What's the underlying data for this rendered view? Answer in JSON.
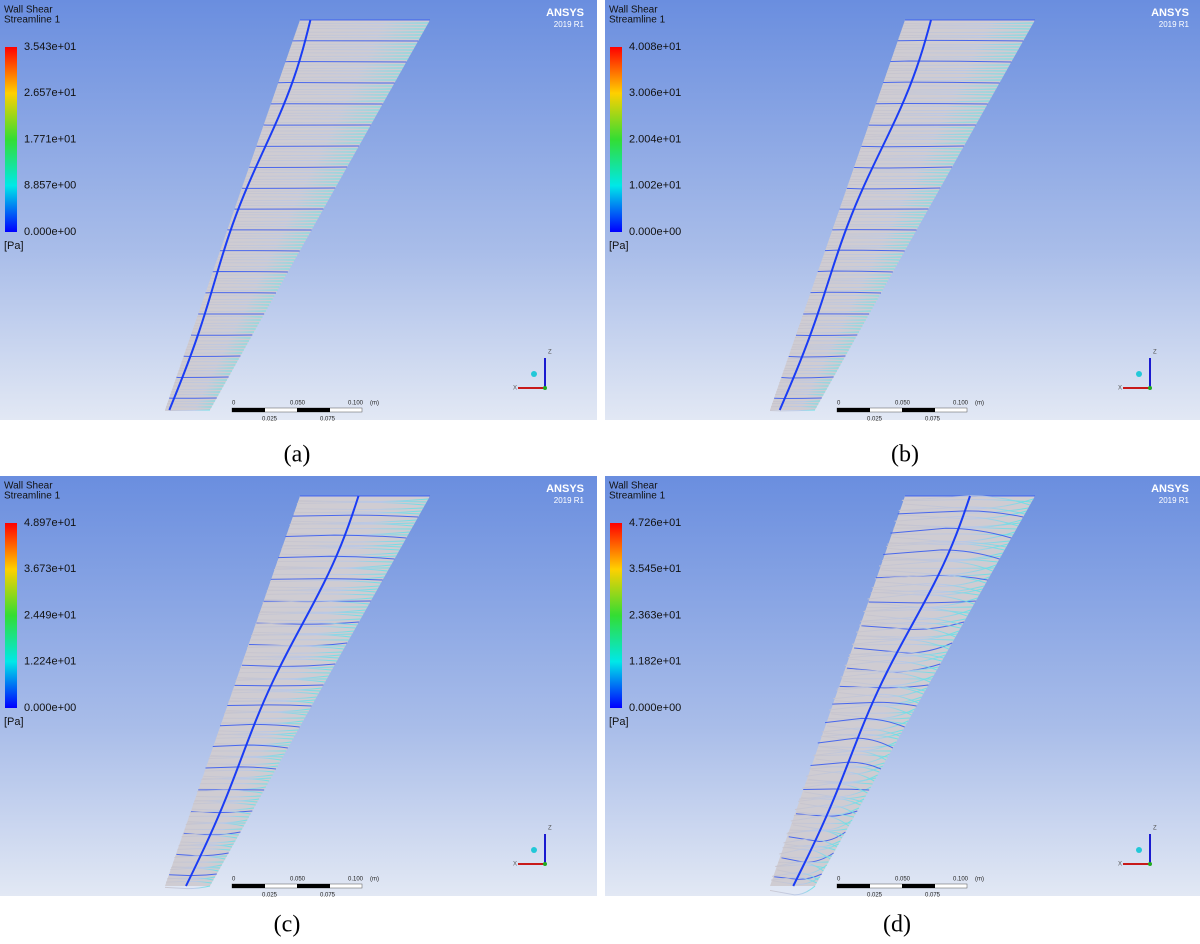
{
  "panels": [
    {
      "title": "Wall Shear",
      "subtitle": "Streamline 1",
      "legend": [
        "3.543e+01",
        "2.657e+01",
        "1.771e+01",
        "8.857e+00",
        "0.000e+00"
      ],
      "unit": "[Pa]",
      "brand": "ANSYS",
      "version": "2019 R1",
      "scale_top": [
        "0",
        "0.050",
        "0.100",
        "(m)"
      ],
      "scale_bottom": [
        "0.025",
        "0.075"
      ],
      "axes": [
        "Z",
        "X"
      ],
      "caption": "(a)"
    },
    {
      "title": "Wall Shear",
      "subtitle": "Streamline 1",
      "legend": [
        "4.008e+01",
        "3.006e+01",
        "2.004e+01",
        "1.002e+01",
        "0.000e+00"
      ],
      "unit": "[Pa]",
      "brand": "ANSYS",
      "version": "2019 R1",
      "scale_top": [
        "0",
        "0.050",
        "0.100",
        "(m)"
      ],
      "scale_bottom": [
        "0.025",
        "0.075"
      ],
      "axes": [
        "Z",
        "X"
      ],
      "caption": "(b)"
    },
    {
      "title": "Wall Shear",
      "subtitle": "Streamline 1",
      "legend": [
        "4.897e+01",
        "3.673e+01",
        "2.449e+01",
        "1.224e+01",
        "0.000e+00"
      ],
      "unit": "[Pa]",
      "brand": "ANSYS",
      "version": "2019 R1",
      "scale_top": [
        "0",
        "0.050",
        "0.100",
        "(m)"
      ],
      "scale_bottom": [
        "0.025",
        "0.075"
      ],
      "axes": [
        "Z",
        "X"
      ],
      "caption": "(c)"
    },
    {
      "title": "Wall Shear",
      "subtitle": "Streamline 1",
      "legend": [
        "4.726e+01",
        "3.545e+01",
        "2.363e+01",
        "1.182e+01",
        "0.000e+00"
      ],
      "unit": "[Pa]",
      "brand": "ANSYS",
      "version": "2019 R1",
      "scale_top": [
        "0",
        "0.050",
        "0.100",
        "(m)"
      ],
      "scale_bottom": [
        "0.025",
        "0.075"
      ],
      "axes": [
        "Z",
        "X"
      ],
      "caption": "(d)"
    }
  ]
}
